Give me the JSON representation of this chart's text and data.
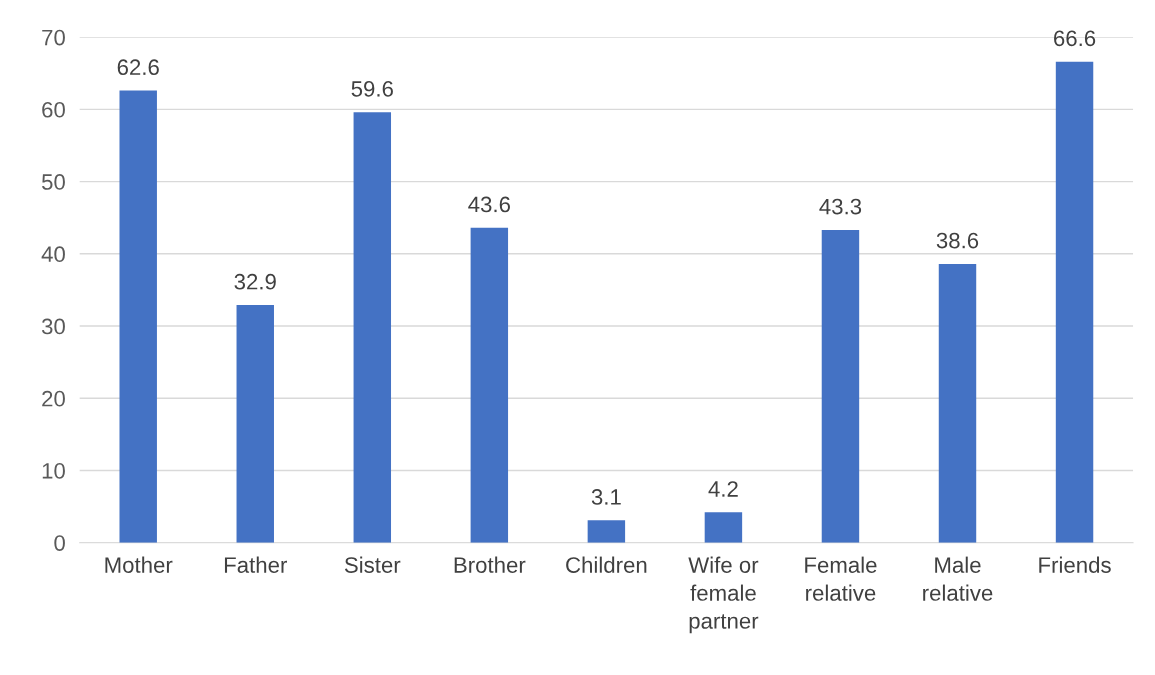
{
  "chart_data": {
    "type": "bar",
    "categories": [
      "Mother",
      "Father",
      "Sister",
      "Brother",
      "Children",
      "Wife or\nfemale\npartner",
      "Female\nrelative",
      "Male\nrelative",
      "Friends"
    ],
    "values": [
      62.6,
      32.9,
      59.6,
      43.6,
      3.1,
      4.2,
      43.3,
      38.6,
      66.6
    ],
    "color": "#4472c4",
    "ylim": [
      0,
      70
    ],
    "yticks": [
      0,
      10,
      20,
      30,
      40,
      50,
      60,
      70
    ],
    "grid": "y",
    "data_labels": true,
    "legend": false
  }
}
